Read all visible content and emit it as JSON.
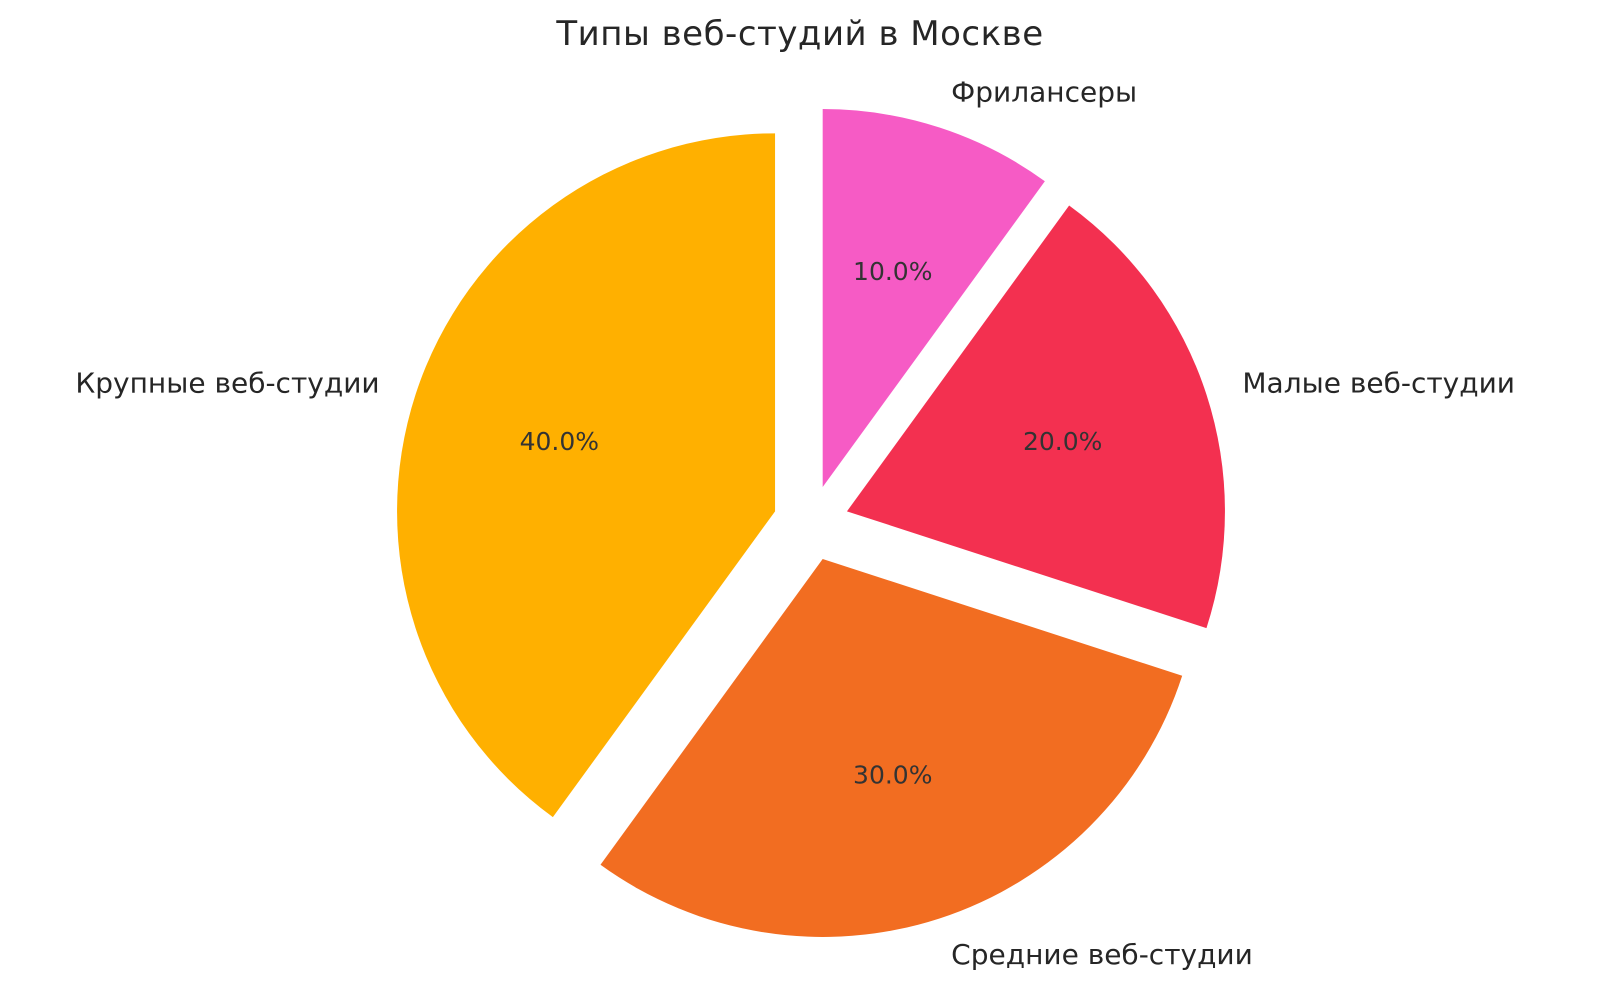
{
  "chart_data": {
    "type": "pie",
    "title": "Типы веб-студий в Москве",
    "start_angle_deg": 90,
    "counterclock": false,
    "explode": 0.1,
    "pct_distance": 0.6,
    "label_distance": 1.1,
    "legend": "none",
    "background_color": "#ffffff",
    "text_color": "#262626",
    "slices": [
      {
        "label": "Фрилансеры",
        "value": 10.0,
        "pct_label": "10.0%",
        "color": "#F65BC5"
      },
      {
        "label": "Малые веб-студии",
        "value": 20.0,
        "pct_label": "20.0%",
        "color": "#F33050"
      },
      {
        "label": "Средние веб-студии",
        "value": 30.0,
        "pct_label": "30.0%",
        "color": "#F26D21"
      },
      {
        "label": "Крупные веб-студии",
        "value": 40.0,
        "pct_label": "40.0%",
        "color": "#FFB000"
      }
    ]
  }
}
